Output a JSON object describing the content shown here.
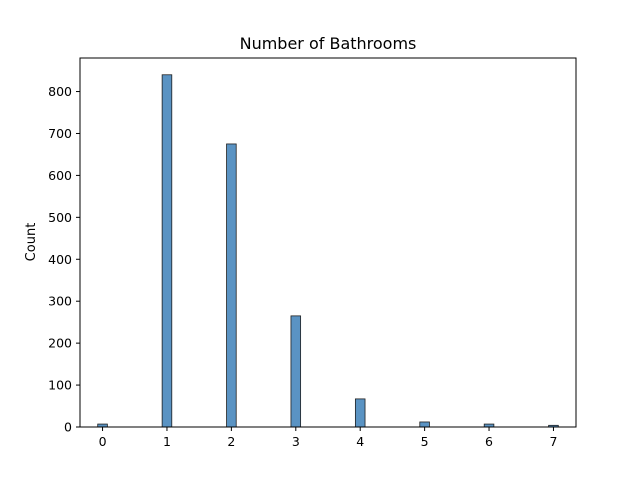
{
  "chart_data": {
    "type": "bar",
    "title": "Number of Bathrooms",
    "xlabel": "",
    "ylabel": "Count",
    "xlim": [
      -0.35,
      7.35
    ],
    "ylim": [
      0,
      880
    ],
    "x_ticks": [
      0,
      1,
      2,
      3,
      4,
      5,
      6,
      7
    ],
    "y_ticks": [
      0,
      100,
      200,
      300,
      400,
      500,
      600,
      700,
      800
    ],
    "bins": [
      {
        "x": 0,
        "count": 7
      },
      {
        "x": 1,
        "count": 840
      },
      {
        "x": 2,
        "count": 675
      },
      {
        "x": 3,
        "count": 265
      },
      {
        "x": 4,
        "count": 67
      },
      {
        "x": 5,
        "count": 12
      },
      {
        "x": 6,
        "count": 7
      },
      {
        "x": 7,
        "count": 4
      }
    ],
    "grid": false,
    "colors": {
      "bar_fill": "#5a93c3",
      "bar_edge": "#1f1f1f",
      "axis": "#000000"
    }
  }
}
